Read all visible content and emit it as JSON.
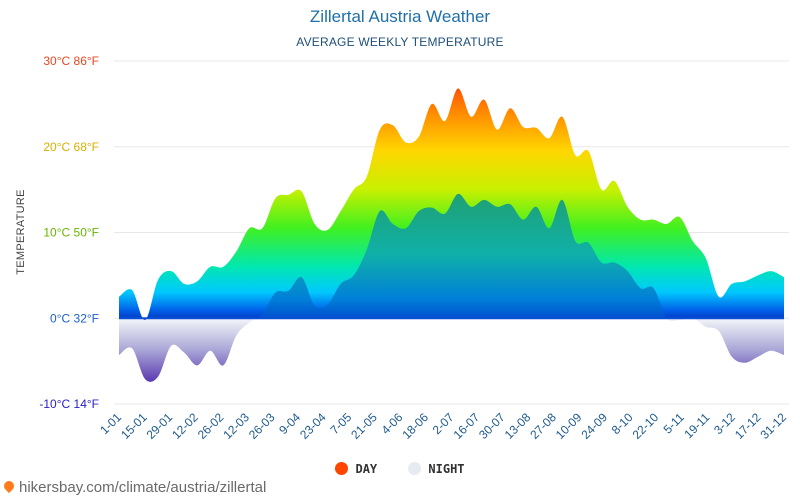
{
  "chart_data": {
    "type": "area",
    "title": "Zillertal Austria Weather",
    "subtitle": "AVERAGE WEEKLY TEMPERATURE",
    "ylabel": "TEMPERATURE",
    "ylim": [
      -10,
      30
    ],
    "grid": true,
    "legend_position": "bottom",
    "y_ticks": [
      {
        "value": 30,
        "label": "30°C 86°F",
        "color": "#e8461e"
      },
      {
        "value": 20,
        "label": "20°C 68°F",
        "color": "#d9b000"
      },
      {
        "value": 10,
        "label": "10°C 50°F",
        "color": "#6ab400"
      },
      {
        "value": 0,
        "label": "0°C 32°F",
        "color": "#1a5fd0"
      },
      {
        "value": -10,
        "label": "-10°C 14°F",
        "color": "#2a20c8"
      }
    ],
    "x_tick_labels": [
      "1-01",
      "15-01",
      "29-01",
      "12-02",
      "26-02",
      "12-03",
      "26-03",
      "9-04",
      "23-04",
      "7-05",
      "21-05",
      "4-06",
      "18-06",
      "2-07",
      "16-07",
      "30-07",
      "13-08",
      "27-08",
      "10-09",
      "24-09",
      "8-10",
      "22-10",
      "5-11",
      "19-11",
      "3-12",
      "17-12",
      "31-12"
    ],
    "series": [
      {
        "name": "DAY",
        "color": "#ff4500",
        "values": [
          2.5,
          3.3,
          -0.2,
          4.5,
          5.5,
          4.0,
          4.3,
          6.0,
          6.0,
          7.8,
          10.5,
          10.5,
          14.0,
          14.4,
          14.8,
          11.0,
          10.3,
          12.5,
          15.0,
          16.5,
          22.0,
          22.5,
          20.5,
          21.2,
          25.0,
          23.0,
          26.8,
          23.5,
          25.5,
          22.0,
          24.5,
          22.3,
          22.2,
          21.0,
          23.5,
          19.0,
          19.5,
          15.0,
          16.0,
          13.0,
          11.5,
          11.5,
          11.0,
          11.8,
          9.0,
          7.0,
          2.5,
          4.0,
          4.3,
          5.0,
          5.5,
          4.8
        ]
      },
      {
        "name": "NIGHT",
        "color": "#e6ebf2",
        "values": [
          -4.3,
          -3.5,
          -7.1,
          -6.8,
          -3.2,
          -4.0,
          -5.5,
          -3.8,
          -5.5,
          -2.0,
          -0.5,
          0.5,
          3.0,
          3.2,
          4.8,
          1.5,
          1.6,
          4.0,
          5.0,
          8.0,
          12.5,
          11.0,
          10.5,
          12.5,
          12.9,
          12.2,
          14.5,
          13.0,
          13.8,
          13.0,
          13.3,
          11.5,
          13.0,
          10.5,
          13.8,
          9.0,
          8.8,
          6.5,
          6.5,
          5.5,
          3.5,
          3.5,
          0.0,
          -0.2,
          0.0,
          -1.0,
          -1.5,
          -4.5,
          -5.2,
          -4.5,
          -3.8,
          -4.3
        ]
      }
    ]
  },
  "legend": {
    "day_label": "DAY",
    "night_label": "NIGHT"
  },
  "watermark": "hikersbay.com/climate/austria/zillertal"
}
